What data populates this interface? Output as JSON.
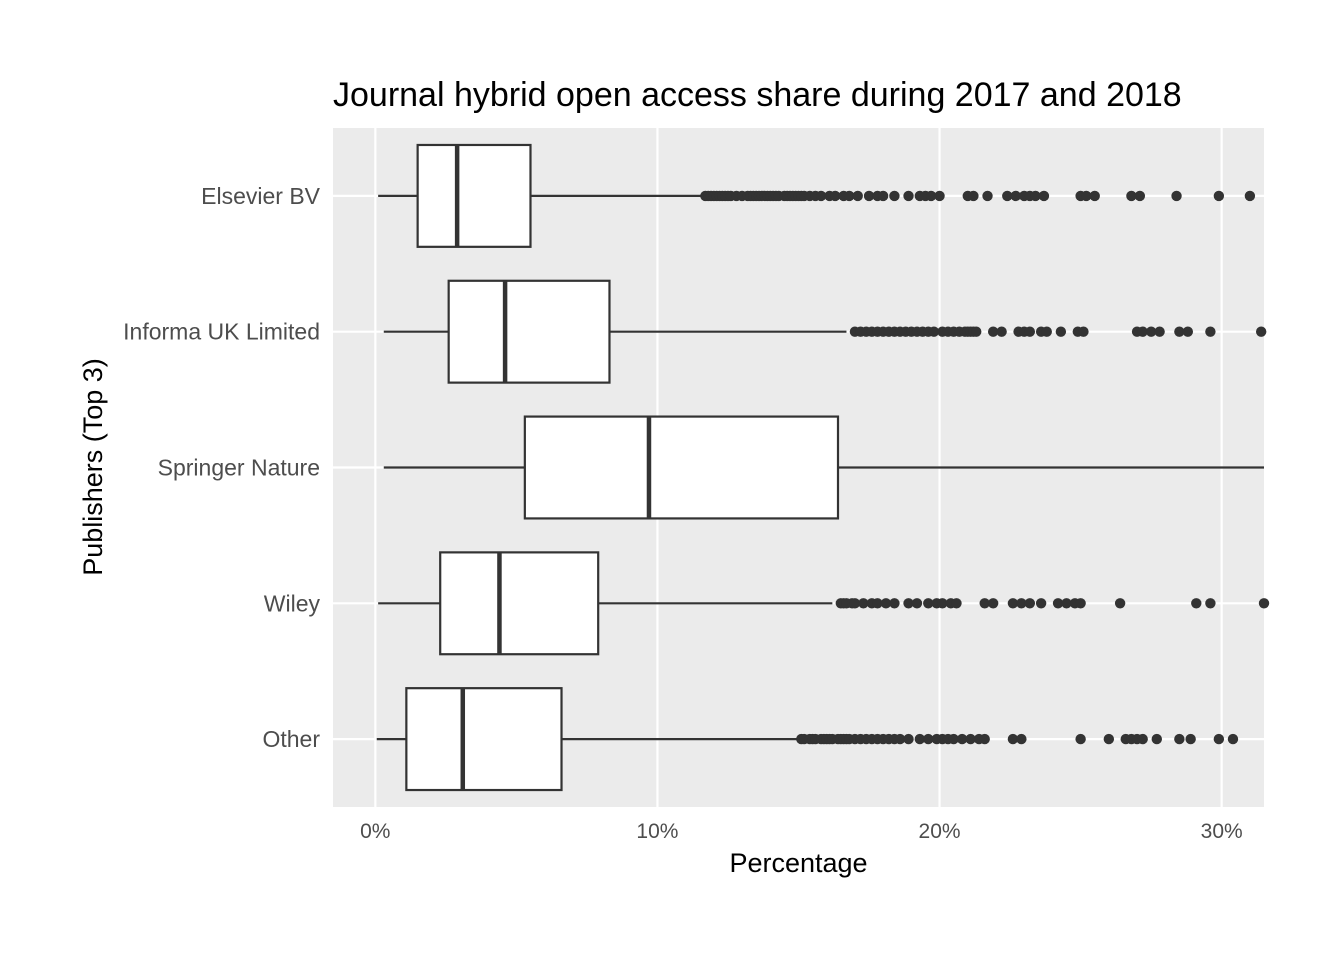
{
  "chart_data": {
    "type": "boxplot",
    "orientation": "horizontal",
    "title": "Journal hybrid open access share during 2017 and 2018",
    "xlabel": "Percentage",
    "ylabel": "Publishers (Top 3)",
    "xlim": [
      -1.5,
      31.5
    ],
    "x_ticks": [
      0,
      10,
      20,
      30
    ],
    "x_tick_labels": [
      "0%",
      "10%",
      "20%",
      "30%"
    ],
    "grid": true,
    "legend": "none",
    "colors": {
      "panel": "#ebebeb",
      "grid": "#ffffff",
      "box_fill": "#ffffff",
      "stroke": "#333333",
      "outlier": "#333333"
    },
    "series": [
      {
        "category": "Elsevier BV",
        "whisker_low": 0.1,
        "q1": 1.5,
        "median": 2.9,
        "q3": 5.5,
        "whisker_high": 11.6,
        "outliers": [
          11.7,
          11.8,
          11.9,
          12.0,
          12.1,
          12.2,
          12.3,
          12.4,
          12.5,
          12.6,
          12.8,
          13.0,
          13.2,
          13.3,
          13.4,
          13.5,
          13.6,
          13.7,
          13.8,
          13.9,
          14.0,
          14.1,
          14.2,
          14.3,
          14.5,
          14.6,
          14.7,
          14.8,
          14.9,
          15.0,
          15.1,
          15.2,
          15.4,
          15.6,
          15.8,
          16.1,
          16.3,
          16.6,
          16.8,
          17.1,
          17.5,
          17.8,
          18.0,
          18.4,
          18.9,
          19.3,
          19.5,
          19.7,
          20.0,
          21.0,
          21.2,
          21.7,
          22.4,
          22.7,
          23.0,
          23.2,
          23.4,
          23.7,
          25.0,
          25.2,
          25.5,
          26.8,
          27.1,
          28.4,
          29.9,
          31.0
        ]
      },
      {
        "category": "Informa UK Limited",
        "whisker_low": 0.3,
        "q1": 2.6,
        "median": 4.6,
        "q3": 8.3,
        "whisker_high": 16.7,
        "outliers": [
          17.0,
          17.2,
          17.4,
          17.6,
          17.8,
          18.0,
          18.2,
          18.4,
          18.6,
          18.8,
          19.0,
          19.2,
          19.4,
          19.6,
          19.8,
          20.1,
          20.3,
          20.5,
          20.7,
          20.9,
          21.0,
          21.1,
          21.2,
          21.3,
          21.9,
          22.2,
          22.8,
          23.0,
          23.2,
          23.6,
          23.8,
          24.3,
          24.9,
          25.1,
          27.0,
          27.2,
          27.5,
          27.8,
          28.5,
          28.8,
          29.6,
          31.4
        ]
      },
      {
        "category": "Springer Nature",
        "whisker_low": 0.3,
        "q1": 5.3,
        "median": 9.7,
        "q3": 16.4,
        "whisker_high": 31.5,
        "outliers": []
      },
      {
        "category": "Wiley",
        "whisker_low": 0.1,
        "q1": 2.3,
        "median": 4.4,
        "q3": 7.9,
        "whisker_high": 16.2,
        "outliers": [
          16.5,
          16.6,
          16.7,
          16.9,
          17.0,
          17.3,
          17.6,
          17.8,
          18.1,
          18.4,
          18.9,
          19.2,
          19.6,
          19.9,
          20.1,
          20.4,
          20.6,
          21.6,
          21.9,
          22.6,
          22.9,
          23.2,
          23.6,
          24.2,
          24.5,
          24.8,
          25.0,
          26.4,
          29.1,
          29.6,
          31.5
        ]
      },
      {
        "category": "Other",
        "whisker_low": 0.05,
        "q1": 1.1,
        "median": 3.1,
        "q3": 6.6,
        "whisker_high": 15.0,
        "outliers": [
          15.1,
          15.2,
          15.4,
          15.5,
          15.6,
          15.8,
          15.9,
          16.0,
          16.1,
          16.2,
          16.4,
          16.5,
          16.6,
          16.7,
          16.8,
          17.0,
          17.2,
          17.4,
          17.6,
          17.8,
          18.0,
          18.2,
          18.4,
          18.6,
          18.9,
          19.3,
          19.6,
          19.9,
          20.1,
          20.3,
          20.5,
          20.8,
          21.1,
          21.4,
          21.6,
          22.6,
          22.9,
          25.0,
          26.0,
          26.6,
          26.8,
          27.0,
          27.2,
          27.7,
          28.5,
          28.9,
          29.9,
          30.4
        ]
      }
    ]
  }
}
